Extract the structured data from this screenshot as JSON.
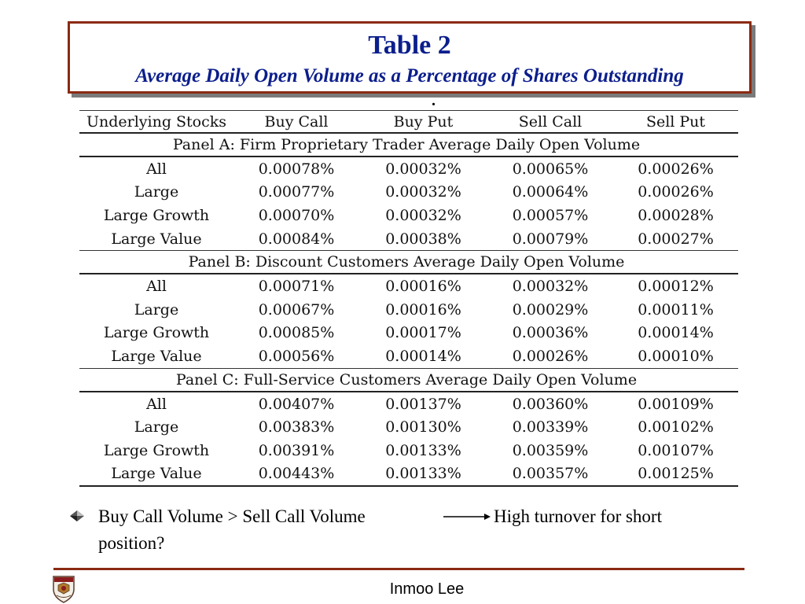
{
  "slide": {
    "title": "Table 2",
    "subtitle": "Average Daily Open Volume as a Percentage of Shares Outstanding",
    "stray_mark": "."
  },
  "table": {
    "headers": [
      "Underlying Stocks",
      "Buy Call",
      "Buy Put",
      "Sell Call",
      "Sell Put"
    ],
    "panels": [
      {
        "title": "Panel A:  Firm Proprietary Trader Average Daily Open Volume",
        "rows": [
          [
            "All",
            "0.00078%",
            "0.00032%",
            "0.00065%",
            "0.00026%"
          ],
          [
            "Large",
            "0.00077%",
            "0.00032%",
            "0.00064%",
            "0.00026%"
          ],
          [
            "Large Growth",
            "0.00070%",
            "0.00032%",
            "0.00057%",
            "0.00028%"
          ],
          [
            "Large Value",
            "0.00084%",
            "0.00038%",
            "0.00079%",
            "0.00027%"
          ]
        ]
      },
      {
        "title": "Panel B:  Discount Customers Average Daily Open Volume",
        "rows": [
          [
            "All",
            "0.00071%",
            "0.00016%",
            "0.00032%",
            "0.00012%"
          ],
          [
            "Large",
            "0.00067%",
            "0.00016%",
            "0.00029%",
            "0.00011%"
          ],
          [
            "Large Growth",
            "0.00085%",
            "0.00017%",
            "0.00036%",
            "0.00014%"
          ],
          [
            "Large Value",
            "0.00056%",
            "0.00014%",
            "0.00026%",
            "0.00010%"
          ]
        ]
      },
      {
        "title": "Panel C:  Full-Service Customers Average Daily Open Volume",
        "rows": [
          [
            "All",
            "0.00407%",
            "0.00137%",
            "0.00360%",
            "0.00109%"
          ],
          [
            "Large",
            "0.00383%",
            "0.00130%",
            "0.00339%",
            "0.00102%"
          ],
          [
            "Large Growth",
            "0.00391%",
            "0.00133%",
            "0.00359%",
            "0.00107%"
          ],
          [
            "Large Value",
            "0.00443%",
            "0.00133%",
            "0.00357%",
            "0.00125%"
          ]
        ]
      }
    ]
  },
  "bullet": {
    "text_before_arrow": "Buy Call Volume > Sell Call Volume",
    "text_after_arrow": "High turnover for short",
    "text_line2": "position?",
    "bullet_icon": "diamond-bullet-icon",
    "arrow_icon": "right-arrow-icon"
  },
  "footer": {
    "author": "Inmoo Lee",
    "logo_icon": "university-crest-icon"
  },
  "colors": {
    "title_text": "#0b1e8c",
    "frame_border": "#8b2a12",
    "frame_shadow": "#7a7a7a"
  }
}
